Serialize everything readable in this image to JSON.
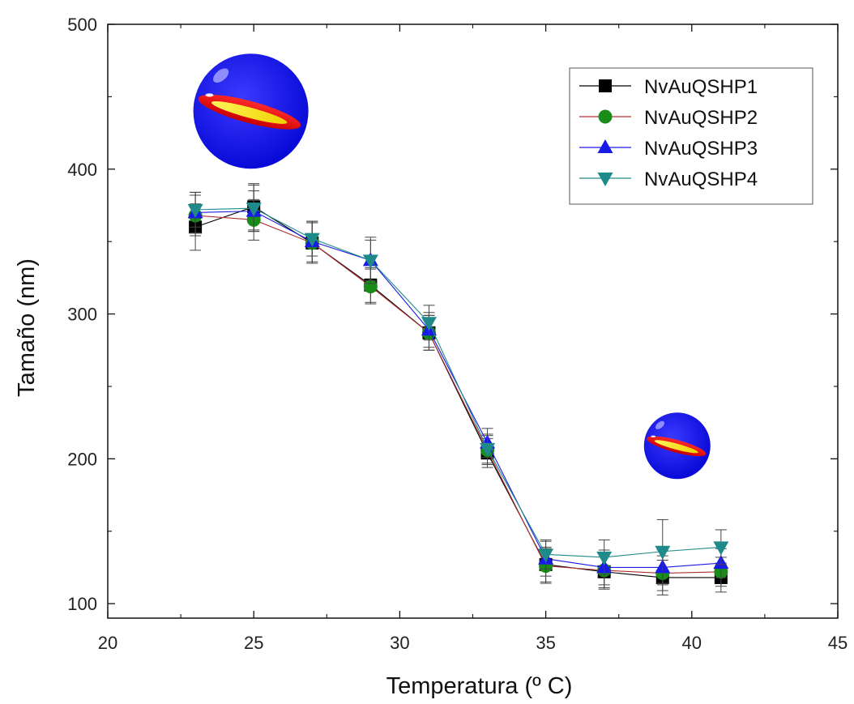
{
  "chart_data": {
    "type": "line",
    "title": "",
    "xlabel": "Temperatura (º C)",
    "ylabel": "Tamaño (nm)",
    "xlim": [
      20,
      45
    ],
    "ylim": [
      90,
      500
    ],
    "xticks": [
      20,
      25,
      30,
      35,
      40,
      45
    ],
    "yticks": [
      100,
      200,
      300,
      400,
      500
    ],
    "grid": false,
    "legend_position": "top-right",
    "x": [
      23,
      25,
      27,
      29,
      31,
      33,
      35,
      37,
      39,
      41
    ],
    "series": [
      {
        "name": "NvAuQSHP1",
        "color": "#000000",
        "marker": "square",
        "values": [
          360,
          374,
          349,
          320,
          287,
          204,
          127,
          122,
          118,
          118
        ],
        "errors": [
          16,
          16,
          14,
          12,
          12,
          10,
          12,
          12,
          12,
          10
        ]
      },
      {
        "name": "NvAuQSHP2",
        "color": "#1a8c1a",
        "line_color": "#b03030",
        "marker": "circle",
        "values": [
          368,
          365,
          349,
          319,
          287,
          206,
          126,
          123,
          121,
          122
        ],
        "errors": [
          14,
          14,
          14,
          12,
          12,
          10,
          12,
          12,
          12,
          10
        ]
      },
      {
        "name": "NvAuQSHP3",
        "color": "#1a1ae6",
        "marker": "triangle-up",
        "values": [
          370,
          371,
          350,
          337,
          289,
          211,
          131,
          125,
          125,
          128
        ],
        "errors": [
          14,
          14,
          14,
          14,
          12,
          10,
          12,
          12,
          12,
          10
        ]
      },
      {
        "name": "NvAuQSHP4",
        "color": "#1f8a8a",
        "marker": "triangle-down",
        "values": [
          372,
          373,
          352,
          337,
          294,
          207,
          134,
          132,
          136,
          139
        ],
        "errors": [
          12,
          16,
          12,
          16,
          12,
          10,
          10,
          12,
          22,
          12
        ]
      }
    ],
    "annotations": [
      {
        "type": "nanoparticle-sphere-large",
        "at_x": 24.9,
        "at_y": 440,
        "size": "large"
      },
      {
        "type": "nanoparticle-sphere-small",
        "at_x": 39.5,
        "at_y": 209,
        "size": "small"
      }
    ]
  }
}
